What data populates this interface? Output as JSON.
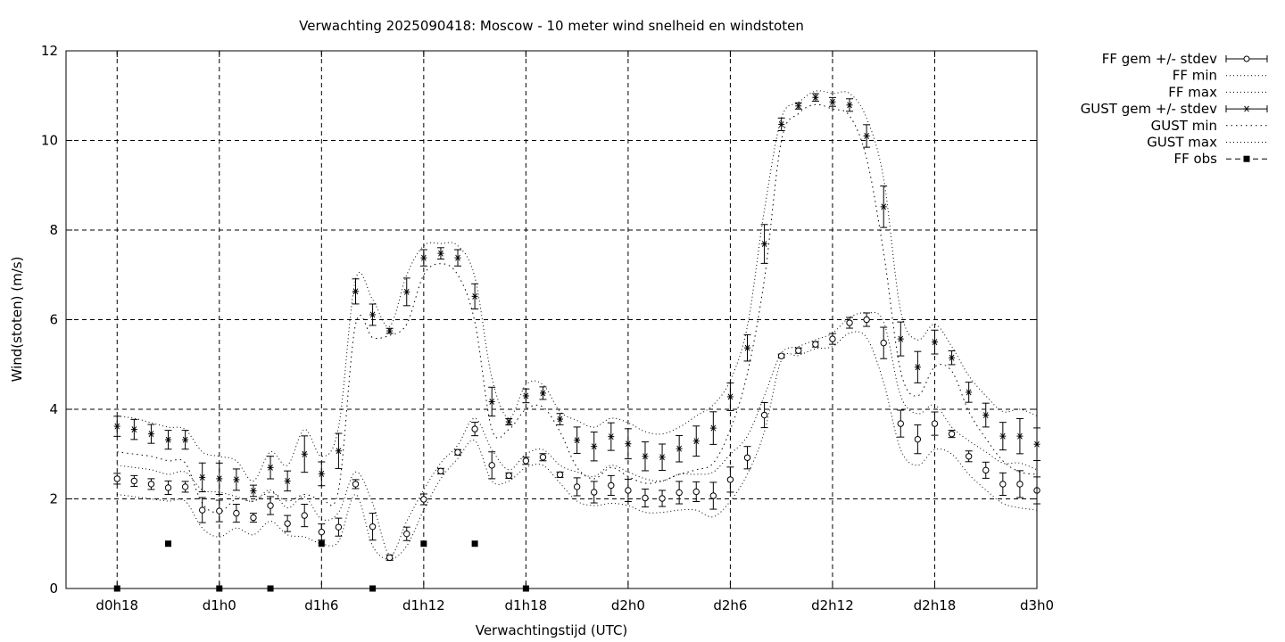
{
  "chart_data": {
    "type": "line",
    "title": "Verwachting 2025090418: Moscow - 10 meter wind snelheid en windstoten",
    "xlabel": "Verwachtingstijd (UTC)",
    "ylabel": "Wind(stoten) (m/s)",
    "ylim": [
      0,
      12
    ],
    "yticks": [
      0,
      2,
      4,
      6,
      8,
      10,
      12
    ],
    "x_unit": "hours since d0h18",
    "xlim": [
      -3,
      54
    ],
    "xticks": [
      {
        "x": 0,
        "label": "d0h18"
      },
      {
        "x": 6,
        "label": "d1h0"
      },
      {
        "x": 12,
        "label": "d1h6"
      },
      {
        "x": 18,
        "label": "d1h12"
      },
      {
        "x": 24,
        "label": "d1h18"
      },
      {
        "x": 30,
        "label": "d2h0"
      },
      {
        "x": 36,
        "label": "d2h6"
      },
      {
        "x": 42,
        "label": "d2h12"
      },
      {
        "x": 48,
        "label": "d2h18"
      },
      {
        "x": 54,
        "label": "d3h0"
      }
    ],
    "grid": true,
    "legend_position": "outside-right",
    "legend": [
      "FF gem +/- stdev",
      "FF min",
      "FF max",
      "GUST gem +/- stdev",
      "GUST min",
      "GUST max",
      "FF obs"
    ],
    "x": [
      0,
      1,
      2,
      3,
      4,
      5,
      6,
      7,
      8,
      9,
      10,
      11,
      12,
      13,
      14,
      15,
      16,
      17,
      18,
      19,
      20,
      21,
      22,
      23,
      24,
      25,
      26,
      27,
      28,
      29,
      30,
      31,
      32,
      33,
      34,
      35,
      36,
      37,
      38,
      39,
      40,
      41,
      42,
      43,
      44,
      45,
      46,
      47,
      48,
      49,
      50,
      51,
      52,
      53,
      54
    ],
    "series": [
      {
        "name": "FF gem +/- stdev",
        "marker": "circle",
        "values": [
          2.45,
          2.4,
          2.33,
          2.25,
          2.27,
          1.75,
          1.73,
          1.68,
          1.58,
          1.85,
          1.45,
          1.63,
          1.26,
          1.37,
          2.33,
          1.38,
          0.69,
          1.22,
          1.99,
          2.62,
          3.04,
          3.56,
          2.75,
          2.52,
          2.85,
          2.93,
          2.54,
          2.27,
          2.15,
          2.3,
          2.19,
          2.02,
          2.01,
          2.14,
          2.16,
          2.07,
          2.43,
          2.92,
          3.87,
          5.19,
          5.31,
          5.45,
          5.57,
          5.93,
          6.0,
          5.48,
          3.68,
          3.33,
          3.68,
          3.45,
          2.95,
          2.64,
          2.33,
          2.33,
          2.19
        ],
        "stdev": [
          0.12,
          0.12,
          0.12,
          0.15,
          0.12,
          0.28,
          0.24,
          0.2,
          0.1,
          0.2,
          0.18,
          0.25,
          0.18,
          0.2,
          0.1,
          0.3,
          0.06,
          0.15,
          0.12,
          0.06,
          0.06,
          0.15,
          0.3,
          0.06,
          0.08,
          0.08,
          0.06,
          0.2,
          0.24,
          0.22,
          0.25,
          0.2,
          0.18,
          0.25,
          0.22,
          0.3,
          0.28,
          0.25,
          0.28,
          0.04,
          0.06,
          0.06,
          0.12,
          0.12,
          0.15,
          0.35,
          0.3,
          0.32,
          0.26,
          0.08,
          0.12,
          0.18,
          0.25,
          0.3,
          0.3
        ]
      },
      {
        "name": "FF min",
        "values": [
          2.1,
          2.05,
          2.0,
          1.95,
          1.95,
          1.35,
          1.15,
          1.35,
          1.2,
          1.5,
          1.2,
          1.15,
          1.0,
          1.05,
          2.1,
          0.95,
          0.65,
          0.95,
          1.75,
          2.45,
          2.9,
          3.3,
          2.4,
          2.4,
          2.7,
          2.75,
          2.35,
          1.95,
          1.85,
          1.9,
          1.85,
          1.7,
          1.7,
          1.75,
          1.75,
          1.6,
          1.95,
          2.55,
          3.5,
          5.1,
          5.2,
          5.35,
          5.4,
          5.7,
          5.6,
          4.6,
          3.1,
          2.75,
          3.1,
          3.0,
          2.55,
          2.2,
          1.9,
          1.8,
          1.75
        ]
      },
      {
        "name": "FF max",
        "values": [
          2.75,
          2.7,
          2.65,
          2.55,
          2.6,
          2.2,
          2.15,
          2.05,
          1.95,
          2.2,
          1.8,
          2.05,
          1.55,
          1.7,
          2.6,
          1.9,
          0.75,
          1.5,
          2.2,
          2.8,
          3.2,
          3.8,
          3.1,
          2.65,
          3.0,
          3.1,
          2.75,
          2.6,
          2.5,
          2.75,
          2.6,
          2.45,
          2.4,
          2.55,
          2.55,
          2.6,
          3.0,
          3.4,
          4.3,
          5.25,
          5.4,
          5.55,
          5.7,
          6.05,
          6.15,
          5.95,
          4.3,
          3.9,
          4.1,
          3.6,
          3.3,
          3.05,
          2.8,
          2.8,
          2.65
        ]
      },
      {
        "name": "GUST gem +/- stdev",
        "marker": "star",
        "values": [
          3.62,
          3.55,
          3.45,
          3.32,
          3.32,
          2.48,
          2.45,
          2.43,
          2.18,
          2.7,
          2.4,
          3.0,
          2.56,
          3.07,
          6.63,
          6.11,
          5.75,
          6.62,
          7.38,
          7.48,
          7.38,
          6.52,
          4.17,
          3.72,
          4.3,
          4.36,
          3.78,
          3.31,
          3.17,
          3.39,
          3.23,
          2.95,
          2.93,
          3.12,
          3.29,
          3.58,
          4.28,
          5.37,
          7.69,
          10.36,
          10.77,
          10.96,
          10.86,
          10.79,
          10.1,
          8.52,
          5.57,
          4.94,
          5.5,
          5.15,
          4.38,
          3.87,
          3.4,
          3.4,
          3.22
        ]
      },
      {
        "name": "GUST min",
        "values": [
          3.05,
          3.0,
          2.95,
          2.85,
          2.8,
          1.9,
          1.7,
          2.0,
          1.95,
          2.15,
          1.95,
          2.1,
          2.0,
          2.2,
          5.9,
          5.6,
          5.65,
          5.9,
          7.0,
          7.25,
          7.0,
          5.95,
          3.55,
          3.55,
          4.0,
          4.05,
          3.5,
          2.7,
          2.45,
          2.7,
          2.5,
          2.35,
          2.4,
          2.55,
          2.65,
          2.8,
          3.55,
          4.8,
          6.9,
          10.0,
          10.6,
          10.8,
          10.7,
          10.55,
          9.6,
          7.5,
          4.85,
          4.3,
          4.95,
          4.85,
          3.95,
          3.35,
          2.85,
          2.6,
          2.55
        ]
      },
      {
        "name": "GUST max",
        "values": [
          3.85,
          3.8,
          3.7,
          3.6,
          3.55,
          3.05,
          2.95,
          2.85,
          2.4,
          3.05,
          2.75,
          3.55,
          2.95,
          3.6,
          6.9,
          6.45,
          5.85,
          7.0,
          7.65,
          7.7,
          7.65,
          6.95,
          4.7,
          3.8,
          4.55,
          4.55,
          3.95,
          3.75,
          3.6,
          3.8,
          3.7,
          3.5,
          3.45,
          3.6,
          3.85,
          4.1,
          4.65,
          5.85,
          8.45,
          10.5,
          10.85,
          11.1,
          11.05,
          11.05,
          10.5,
          9.15,
          6.2,
          5.55,
          5.9,
          5.4,
          4.75,
          4.3,
          3.95,
          4.0,
          3.85
        ]
      },
      {
        "name": "FF obs",
        "marker": "square",
        "x": [
          0,
          3,
          6,
          9,
          12,
          15,
          18,
          21,
          24
        ],
        "values": [
          0,
          1,
          0,
          0,
          1,
          0,
          1,
          1,
          0
        ]
      }
    ]
  }
}
